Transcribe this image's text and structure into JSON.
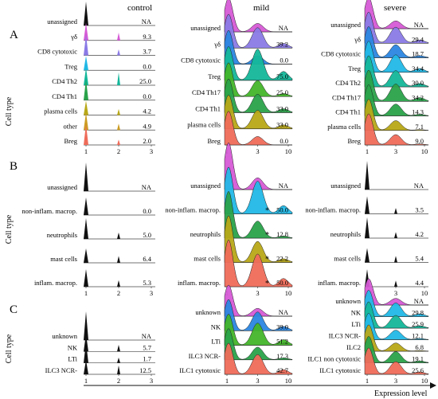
{
  "figure": {
    "y_axis_label": "Cell type",
    "x_axis_label": "Expression level",
    "panel_letters": [
      "A",
      "B",
      "C"
    ],
    "condition_titles": [
      "control",
      "mild",
      "severe"
    ]
  },
  "colors": {
    "magenta": "#d65ad6",
    "purple": "#8a7ae6",
    "blue": "#2b86e0",
    "cyan": "#22b8e6",
    "teal": "#14b79a",
    "green": "#2aa24a",
    "lime": "#43b52a",
    "olive": "#b8a818",
    "mustard": "#cc9d22",
    "salmon": "#ef6c5a",
    "black": "#111111"
  },
  "chart_data": [
    {
      "type": "ridgeline",
      "panel": "A",
      "condition": "control",
      "x_ticks": [
        "1",
        "2",
        "3"
      ],
      "rows": [
        {
          "label": "unassigned",
          "value": "NA"
        },
        {
          "label": "γδ",
          "value": "9.3"
        },
        {
          "label": "CD8 cytotoxic",
          "value": "3.7"
        },
        {
          "label": "Treg",
          "value": "0.0"
        },
        {
          "label": "CD4 Th2",
          "value": "25.0"
        },
        {
          "label": "CD4 Th1",
          "value": "0.0"
        },
        {
          "label": "plasma cells",
          "value": "4.2"
        },
        {
          "label": "other",
          "value": "4.9"
        },
        {
          "label": "Breg",
          "value": "2.0"
        }
      ]
    },
    {
      "type": "ridgeline",
      "panel": "A",
      "condition": "mild",
      "x_ticks": [
        "1",
        "3",
        "10"
      ],
      "rows": [
        {
          "label": "unassigned",
          "value": "NA"
        },
        {
          "label": "γδ",
          "value": "39.2"
        },
        {
          "label": "CD8 cytotoxic",
          "value": "0.0"
        },
        {
          "label": "Treg",
          "value": "75.0"
        },
        {
          "label": "CD4 Th17",
          "value": "25.0"
        },
        {
          "label": "CD4 Th1",
          "value": "33.0"
        },
        {
          "label": "plasma cells",
          "value": "33.0"
        },
        {
          "label": "Breg",
          "value": "0.0"
        }
      ]
    },
    {
      "type": "ridgeline",
      "panel": "A",
      "condition": "severe",
      "x_ticks": [
        "1",
        "3",
        "10"
      ],
      "rows": [
        {
          "label": "unassigned",
          "value": "NA"
        },
        {
          "label": "γδ",
          "value": "29.4"
        },
        {
          "label": "CD8 cytotoxic",
          "value": "18.7"
        },
        {
          "label": "Treg",
          "value": "34.4"
        },
        {
          "label": "CD4 Th2",
          "value": "30.0"
        },
        {
          "label": "CD4 Th17",
          "value": "34.2"
        },
        {
          "label": "CD4 Th1",
          "value": "14.3"
        },
        {
          "label": "plasma cells",
          "value": "7.1"
        },
        {
          "label": "Breg",
          "value": "9.0"
        }
      ]
    },
    {
      "type": "ridgeline",
      "panel": "B",
      "condition": "control",
      "x_ticks": [
        "1",
        "2",
        "3"
      ],
      "rows": [
        {
          "label": "unassigned",
          "value": "NA"
        },
        {
          "label": "non-inflam. macrop.",
          "value": "0.0"
        },
        {
          "label": "neutrophils",
          "value": "5.0"
        },
        {
          "label": "mast cells",
          "value": "6.4"
        },
        {
          "label": "inflam. macrop.",
          "value": "5.3"
        }
      ]
    },
    {
      "type": "ridgeline",
      "panel": "B",
      "condition": "mild",
      "x_ticks": [
        "1",
        "3",
        "10"
      ],
      "rows": [
        {
          "label": "unassigned",
          "value": "NA"
        },
        {
          "label": "non-inflam. macrop.",
          "value": "50.0",
          "star": "*"
        },
        {
          "label": "neutrophils",
          "value": "12.8",
          "star": "*"
        },
        {
          "label": "mast cells",
          "value": "22.2",
          "star": "*"
        },
        {
          "label": "inflam. macrop.",
          "value": "50.0",
          "star": "*"
        }
      ]
    },
    {
      "type": "ridgeline",
      "panel": "B",
      "condition": "severe",
      "x_ticks": [
        "1",
        "3",
        "10"
      ],
      "rows": [
        {
          "label": "unassigned",
          "value": "NA"
        },
        {
          "label": "non-inflam. macrop.",
          "value": "3.5"
        },
        {
          "label": "neutrophils",
          "value": "4.2"
        },
        {
          "label": "mast cells",
          "value": "5.4"
        },
        {
          "label": "inflam. macrop.",
          "value": "4.4"
        }
      ]
    },
    {
      "type": "ridgeline",
      "panel": "C",
      "condition": "control",
      "x_ticks": [
        "1",
        "2",
        "3"
      ],
      "rows": [
        {
          "label": "unknown",
          "value": "NA"
        },
        {
          "label": "NK",
          "value": "5.7"
        },
        {
          "label": "LTi",
          "value": "1.7"
        },
        {
          "label": "ILC3 NCR-",
          "value": "12.5"
        }
      ]
    },
    {
      "type": "ridgeline",
      "panel": "C",
      "condition": "mild",
      "x_ticks": [
        "1",
        "3",
        "10"
      ],
      "rows": [
        {
          "label": "unknown",
          "value": "NA"
        },
        {
          "label": "NK",
          "value": "39.0"
        },
        {
          "label": "LTi",
          "value": "51.2"
        },
        {
          "label": "ILC3 NCR-",
          "value": "17.3"
        },
        {
          "label": "ILC1 cytotoxic",
          "value": "42.7"
        }
      ]
    },
    {
      "type": "ridgeline",
      "panel": "C",
      "condition": "severe",
      "x_ticks": [
        "1",
        "3",
        "10"
      ],
      "rows": [
        {
          "label": "unknown",
          "value": "NA"
        },
        {
          "label": "NK",
          "value": "29.8"
        },
        {
          "label": "LTi",
          "value": "25.9"
        },
        {
          "label": "ILC3 NCR-",
          "value": "12.1"
        },
        {
          "label": "ILC2",
          "value": "6.8"
        },
        {
          "label": "ILC1 non cytotoxic",
          "value": "19.1"
        },
        {
          "label": "ILC1 cytotoxic",
          "value": "25.6"
        }
      ]
    }
  ]
}
